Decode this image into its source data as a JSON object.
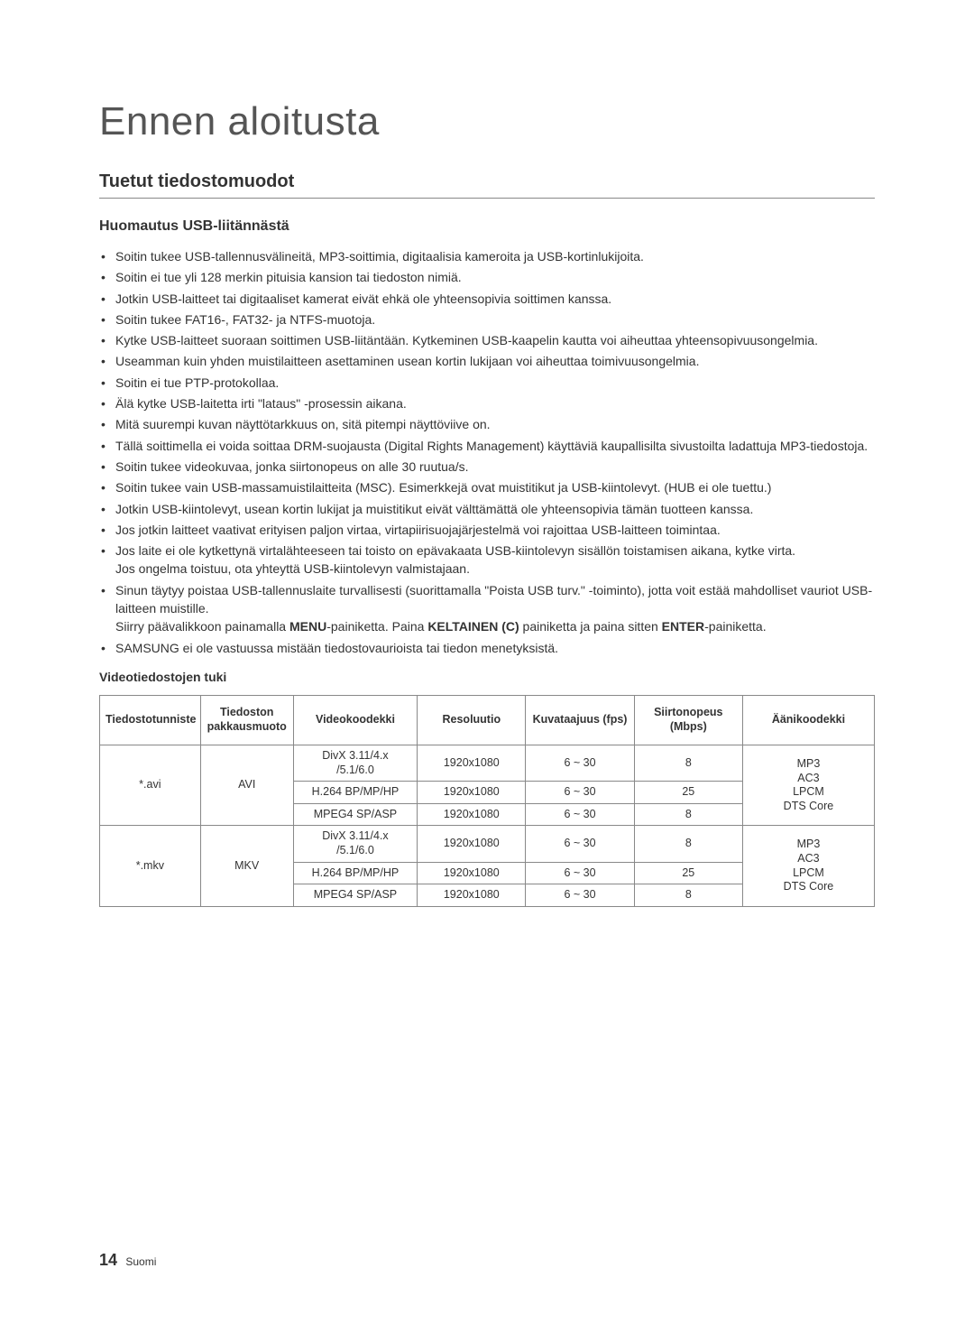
{
  "page": {
    "main_title": "Ennen aloitusta",
    "section_title": "Tuetut tiedostomuodot",
    "sub_heading": "Huomautus USB-liitännästä",
    "page_number": "14",
    "page_lang": "Suomi"
  },
  "bullets": [
    "Soitin tukee USB-tallennusvälineitä, MP3-soittimia, digitaalisia kameroita ja USB-kortinlukijoita.",
    "Soitin ei tue yli 128 merkin pituisia kansion tai tiedoston nimiä.",
    "Jotkin USB-laitteet tai digitaaliset kamerat eivät ehkä ole yhteensopivia soittimen kanssa.",
    "Soitin tukee FAT16-, FAT32- ja NTFS-muotoja.",
    "Kytke USB-laitteet suoraan soittimen USB-liitäntään. Kytkeminen USB-kaapelin kautta voi aiheuttaa yhteensopivuusongelmia.",
    "Useamman kuin yhden muistilaitteen asettaminen usean kortin lukijaan voi aiheuttaa toimivuusongelmia.",
    "Soitin ei tue PTP-protokollaa.",
    "Älä kytke USB-laitetta irti \"lataus\" -prosessin aikana.",
    "Mitä suurempi kuvan näyttötarkkuus on, sitä pitempi näyttöviive on.",
    "Tällä soittimella ei voida soittaa DRM-suojausta (Digital Rights Management) käyttäviä kaupallisilta sivustoilta ladattuja MP3-tiedostoja.",
    "Soitin tukee videokuvaa, jonka siirtonopeus on alle 30 ruutua/s.",
    "Soitin tukee vain USB-massamuistilaitteita (MSC). Esimerkkejä ovat muistitikut ja USB-kiintolevyt. (HUB ei ole tuettu.)",
    "Jotkin USB-kiintolevyt, usean kortin lukijat ja muistitikut eivät välttämättä ole yhteensopivia tämän tuotteen kanssa.",
    "Jos jotkin laitteet vaativat erityisen paljon virtaa, virtapiirisuojajärjestelmä voi rajoittaa USB-laitteen toimintaa."
  ],
  "bullet_power": {
    "line1": "Jos laite ei ole kytkettynä virtalähteeseen tai toisto on epävakaata USB-kiintolevyn sisällön toistamisen aikana, kytke virta.",
    "line2": "Jos ongelma toistuu, ota yhteyttä USB-kiintolevyn valmistajaan."
  },
  "bullet_remove": {
    "line1": "Sinun täytyy poistaa USB-tallennuslaite turvallisesti (suorittamalla \"Poista USB turv.\" -toiminto), jotta voit estää mahdolliset vauriot USB-laitteen muistille.",
    "line2_pre": "Siirry päävalikkoon painamalla ",
    "menu": "MENU",
    "line2_mid": "-painiketta. Paina ",
    "yellow": "KELTAINEN (C)",
    "line2_post1": " painiketta ja paina sitten ",
    "enter": "ENTER",
    "line2_post2": "-painiketta."
  },
  "bullet_last": "SAMSUNG ei ole vastuussa mistään tiedostovaurioista tai tiedon menetyksistä.",
  "table": {
    "title": "Videotiedostojen tuki",
    "headers": {
      "ext": "Tiedostotunniste",
      "container": "Tiedoston pakkausmuoto",
      "vcodec": "Videokoodekki",
      "res": "Resoluutio",
      "fps": "Kuvataajuus (fps)",
      "bitrate": "Siirtonopeus (Mbps)",
      "acodec": "Äänikoodekki"
    },
    "col_widths": [
      "13%",
      "12%",
      "16%",
      "14%",
      "14%",
      "14%",
      "17%"
    ],
    "groups": [
      {
        "ext": "*.avi",
        "container": "AVI",
        "audio": [
          "MP3",
          "AC3",
          "LPCM",
          "DTS Core"
        ],
        "rows": [
          {
            "vcodec_l1": "DivX 3.11/4.x",
            "vcodec_l2": "/5.1/6.0",
            "res": "1920x1080",
            "fps": "6 ~ 30",
            "bitrate": "8"
          },
          {
            "vcodec_l1": "H.264 BP/MP/HP",
            "vcodec_l2": "",
            "res": "1920x1080",
            "fps": "6 ~ 30",
            "bitrate": "25"
          },
          {
            "vcodec_l1": "MPEG4 SP/ASP",
            "vcodec_l2": "",
            "res": "1920x1080",
            "fps": "6 ~ 30",
            "bitrate": "8"
          }
        ]
      },
      {
        "ext": "*.mkv",
        "container": "MKV",
        "audio": [
          "MP3",
          "AC3",
          "LPCM",
          "DTS Core"
        ],
        "rows": [
          {
            "vcodec_l1": "DivX 3.11/4.x",
            "vcodec_l2": "/5.1/6.0",
            "res": "1920x1080",
            "fps": "6 ~ 30",
            "bitrate": "8"
          },
          {
            "vcodec_l1": "H.264 BP/MP/HP",
            "vcodec_l2": "",
            "res": "1920x1080",
            "fps": "6 ~ 30",
            "bitrate": "25"
          },
          {
            "vcodec_l1": "MPEG4 SP/ASP",
            "vcodec_l2": "",
            "res": "1920x1080",
            "fps": "6 ~ 30",
            "bitrate": "8"
          }
        ]
      }
    ]
  },
  "colors": {
    "text": "#333333",
    "title": "#555555",
    "border": "#888888",
    "background": "#ffffff"
  }
}
